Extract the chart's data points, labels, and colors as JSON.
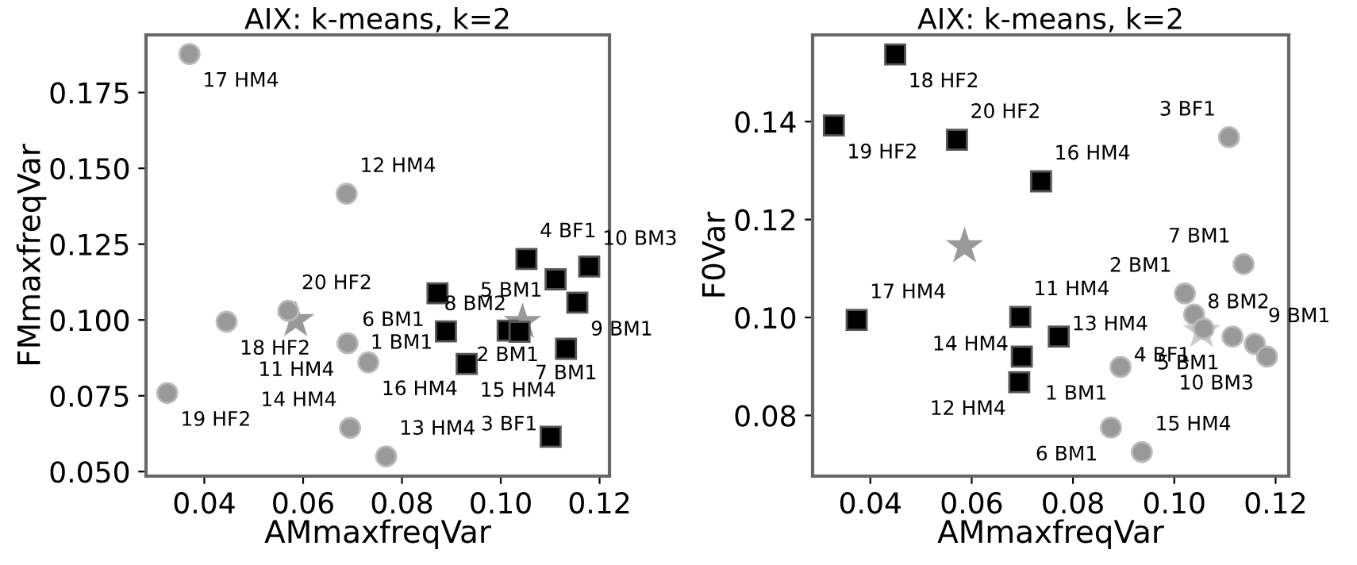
{
  "chart_data": [
    {
      "type": "scatter",
      "title": "AIX: k-means, k=2",
      "xlabel": "AMmaxfreqVar",
      "ylabel": "FMmaxfreqVar",
      "xlim": [
        0.0282,
        0.122
      ],
      "ylim": [
        0.0485,
        0.194
      ],
      "xticks": [
        0.04,
        0.06,
        0.08,
        {
          "value": 0.1,
          "label": "0.10"
        },
        0.12
      ],
      "yticks": [
        {
          "value": 0.05,
          "label": "0.050"
        },
        0.075,
        {
          "value": 0.1,
          "label": "0.100"
        },
        0.125,
        {
          "value": 0.15,
          "label": "0.150"
        },
        0.175
      ],
      "grid": false,
      "legend": false,
      "series": [
        {
          "marker": "circle",
          "color": "#999999",
          "x": [
            0.037,
            0.0688,
            0.0445,
            0.057,
            0.069,
            0.0732,
            0.0325,
            0.0695,
            0.0768
          ],
          "values": [
            0.1877,
            0.1416,
            0.0994,
            0.103,
            0.0923,
            0.086,
            0.0759,
            0.0644,
            0.055
          ]
        },
        {
          "marker": "square",
          "color": "#000000",
          "x": [
            0.1052,
            0.1179,
            0.1111,
            0.0872,
            0.1155,
            0.0889,
            0.1014,
            0.1038,
            0.1132,
            0.0931,
            0.1101
          ],
          "values": [
            0.1201,
            0.1176,
            0.1134,
            0.1088,
            0.1057,
            0.0962,
            0.0965,
            0.0961,
            0.0905,
            0.0855,
            0.0615
          ]
        },
        {
          "marker": "star",
          "color": "#999999",
          "x": [
            0.0585,
            0.1044
          ],
          "values": [
            0.0999,
            0.0993
          ]
        }
      ],
      "annotations": [
        {
          "text": "17 HM4",
          "x": 0.037,
          "y": 0.1877
        },
        {
          "text": "12 HM4",
          "x": 0.0688,
          "y": 0.1416
        },
        {
          "text": "18 HF2",
          "x": 0.0445,
          "y": 0.0994
        },
        {
          "text": "20 HF2",
          "x": 0.057,
          "y": 0.103
        },
        {
          "text": "11 HM4",
          "x": 0.069,
          "y": 0.0923
        },
        {
          "text": "16 HM4",
          "x": 0.0732,
          "y": 0.086
        },
        {
          "text": "19 HF2",
          "x": 0.0325,
          "y": 0.0759
        },
        {
          "text": "14 HM4",
          "x": 0.0695,
          "y": 0.0644
        },
        {
          "text": "13 HM4",
          "x": 0.0768,
          "y": 0.055
        },
        {
          "text": "4 BF1",
          "x": 0.1052,
          "y": 0.1201
        },
        {
          "text": "10 BM3",
          "x": 0.1179,
          "y": 0.1176
        },
        {
          "text": "5 BM1",
          "x": 0.1111,
          "y": 0.1134
        },
        {
          "text": "6 BM1",
          "x": 0.0872,
          "y": 0.1088
        },
        {
          "text": "9 BM1",
          "x": 0.1155,
          "y": 0.1057
        },
        {
          "text": "1 BM1",
          "x": 0.0889,
          "y": 0.0962
        },
        {
          "text": "2 BM1",
          "x": 0.1014,
          "y": 0.0965
        },
        {
          "text": "8 BM2",
          "x": 0.1038,
          "y": 0.0961
        },
        {
          "text": "7 BM1",
          "x": 0.1132,
          "y": 0.0905
        },
        {
          "text": "15 HM4",
          "x": 0.0931,
          "y": 0.0855
        },
        {
          "text": "3 BF1",
          "x": 0.1101,
          "y": 0.0615
        }
      ]
    },
    {
      "type": "scatter",
      "title": "AIX: k-means, k=2",
      "xlabel": "AMmaxfreqVar",
      "ylabel": "F0Var",
      "xlim": [
        0.0286,
        0.1226
      ],
      "ylim": [
        0.0676,
        0.1577
      ],
      "xticks": [
        0.04,
        0.06,
        0.08,
        {
          "value": 0.1,
          "label": "0.10"
        },
        0.12
      ],
      "yticks": [
        0.08,
        {
          "value": 0.1,
          "label": "0.10"
        },
        0.12,
        0.14
      ],
      "grid": false,
      "legend": false,
      "series": [
        {
          "marker": "square",
          "color": "#000000",
          "x": [
            0.0449,
            0.0328,
            0.0571,
            0.0737,
            0.0373,
            0.0696,
            0.0772,
            0.0699,
            0.0694
          ],
          "values": [
            0.1537,
            0.1392,
            0.1363,
            0.1278,
            0.0995,
            0.1001,
            0.0961,
            0.092,
            0.0868
          ]
        },
        {
          "marker": "circle",
          "color": "#999999",
          "x": [
            0.1108,
            0.1137,
            0.1021,
            0.1039,
            0.1058,
            0.1115,
            0.1159,
            0.1183,
            0.0894,
            0.0875,
            0.0936
          ],
          "values": [
            0.1368,
            0.1109,
            0.1049,
            0.1006,
            0.0977,
            0.0961,
            0.0946,
            0.092,
            0.0899,
            0.0775,
            0.0725
          ]
        },
        {
          "marker": "star",
          "color": "#999999",
          "x": [
            0.0586
          ],
          "values": [
            0.1145
          ]
        },
        {
          "marker": "star",
          "color": "#cccccc",
          "x": [
            0.1054
          ],
          "values": [
            0.0972
          ]
        }
      ],
      "annotations": [
        {
          "text": "18 HF2",
          "x": 0.0449,
          "y": 0.1537
        },
        {
          "text": "19 HF2",
          "x": 0.0328,
          "y": 0.1392
        },
        {
          "text": "20 HF2",
          "x": 0.0571,
          "y": 0.1363
        },
        {
          "text": "16 HM4",
          "x": 0.0737,
          "y": 0.1278
        },
        {
          "text": "17 HM4",
          "x": 0.0373,
          "y": 0.0995
        },
        {
          "text": "11 HM4",
          "x": 0.0696,
          "y": 0.1001
        },
        {
          "text": "13 HM4",
          "x": 0.0772,
          "y": 0.0961
        },
        {
          "text": "14 HM4",
          "x": 0.0699,
          "y": 0.092
        },
        {
          "text": "12 HM4",
          "x": 0.0694,
          "y": 0.0868
        },
        {
          "text": "3 BF1",
          "x": 0.1108,
          "y": 0.1368
        },
        {
          "text": "7 BM1",
          "x": 0.1137,
          "y": 0.1109
        },
        {
          "text": "2 BM1",
          "x": 0.1021,
          "y": 0.1049
        },
        {
          "text": "8 BM2",
          "x": 0.1039,
          "y": 0.1006
        },
        {
          "text": "4 BF1",
          "x": 0.1058,
          "y": 0.0977
        },
        {
          "text": "5 BM1",
          "x": 0.1115,
          "y": 0.0961
        },
        {
          "text": "9 BM1",
          "x": 0.1159,
          "y": 0.0946
        },
        {
          "text": "10 BM3",
          "x": 0.1183,
          "y": 0.092
        },
        {
          "text": "1 BM1",
          "x": 0.0894,
          "y": 0.0899
        },
        {
          "text": "6 BM1",
          "x": 0.0875,
          "y": 0.0775
        },
        {
          "text": "15 HM4",
          "x": 0.0936,
          "y": 0.0725
        }
      ]
    }
  ]
}
